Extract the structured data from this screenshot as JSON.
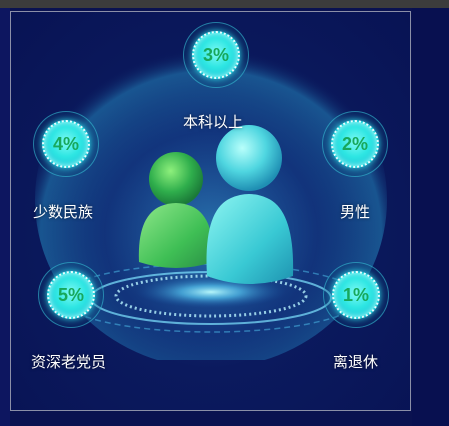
{
  "stats": [
    {
      "key": "bachelor",
      "value": "3%",
      "label": "本科以上"
    },
    {
      "key": "minority",
      "value": "4%",
      "label": "少数民族"
    },
    {
      "key": "male",
      "value": "2%",
      "label": "男性"
    },
    {
      "key": "senior-member",
      "value": "5%",
      "label": "资深老党员"
    },
    {
      "key": "retired",
      "value": "1%",
      "label": "离退休"
    }
  ]
}
